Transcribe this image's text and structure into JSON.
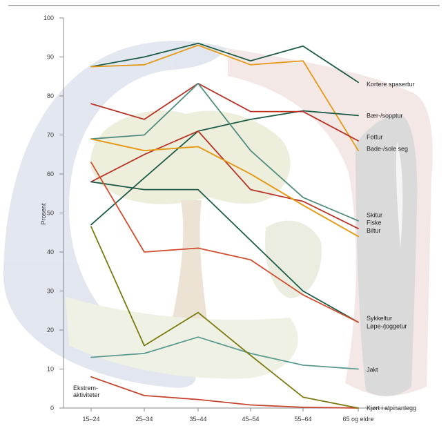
{
  "chart_data": {
    "type": "line",
    "title": "",
    "xlabel": "",
    "ylabel": "Prosent",
    "ylim": [
      0,
      100
    ],
    "yticks": [
      0,
      10,
      20,
      30,
      40,
      50,
      60,
      70,
      80,
      90,
      100
    ],
    "categories": [
      "15–24",
      "25–34",
      "35–44",
      "45–54",
      "55–64",
      "65 og eldre"
    ],
    "grid": false,
    "legend": "labels at line ends (right)",
    "series": [
      {
        "name": "Kortere spasertur",
        "color": "#1d5b46",
        "values": [
          87.5,
          90,
          93.5,
          89,
          92.8,
          83.5
        ]
      },
      {
        "name": "",
        "color": "#e49a17",
        "values": [
          87.5,
          88,
          93,
          88,
          89,
          66
        ]
      },
      {
        "name": "Bær-/sopptur",
        "color": "#1d5b46",
        "values": [
          47,
          59,
          71,
          74,
          76.2,
          75
        ]
      },
      {
        "name": "Fottur",
        "color": "#b83326",
        "values": [
          78,
          74,
          83.2,
          76,
          76,
          68.5
        ]
      },
      {
        "name": "Bade-/sole seg",
        "color": "#e49a17",
        "values": [
          69,
          66,
          67,
          60,
          52,
          44
        ]
      },
      {
        "name": "Skitur",
        "color": "#4f8c7e",
        "values": [
          69,
          70,
          83.2,
          66,
          54,
          48
        ]
      },
      {
        "name": "Fiske",
        "color": "#b83326",
        "values": [
          58,
          65,
          71,
          56,
          53,
          46
        ]
      },
      {
        "name": "Biltur",
        "color": "#e49a17",
        "values": [
          69,
          66,
          67,
          60,
          52,
          44
        ]
      },
      {
        "name": "Sykkeltur",
        "color": "#1d5b46",
        "values": [
          58,
          56,
          56,
          43,
          30,
          22
        ]
      },
      {
        "name": "Løpe-/joggetur",
        "color": "#d04e2f",
        "values": [
          63,
          40,
          41,
          38,
          29,
          22
        ]
      },
      {
        "name": "Jakt",
        "color": "#5b9a90",
        "values": [
          13,
          14,
          18.2,
          14,
          11,
          10
        ]
      },
      {
        "name": "Ekstrem-aktiviteter",
        "color": "#c8432e",
        "values": [
          8,
          3.2,
          2.2,
          0.8,
          0.2,
          0
        ]
      },
      {
        "name": "Kjørt i alpinanlegg",
        "color": "#7a7a10",
        "values": [
          46.5,
          16,
          24.5,
          13.5,
          2.8,
          0
        ]
      }
    ],
    "end_labels": [
      {
        "text": "Kortere spasertur",
        "value": 83
      },
      {
        "text": "Bær-/sopptur",
        "value": 75
      },
      {
        "text": "Fottur",
        "value": 69.5
      },
      {
        "text": "Bade-/sole seg",
        "value": 66.5
      },
      {
        "text": "Skitur",
        "value": 49.5
      },
      {
        "text": "Fiske",
        "value": 47.5
      },
      {
        "text": "Biltur",
        "value": 45.5
      },
      {
        "text": "Sykkeltur",
        "value": 23
      },
      {
        "text": "Løpe-/joggetur",
        "value": 21
      },
      {
        "text": "Jakt",
        "value": 9.8
      },
      {
        "text": "Kjørt i alpinanlegg",
        "value": 0
      }
    ],
    "annotations": [
      {
        "lines": [
          "Ekstrem-",
          "aktiviteter"
        ]
      }
    ]
  }
}
